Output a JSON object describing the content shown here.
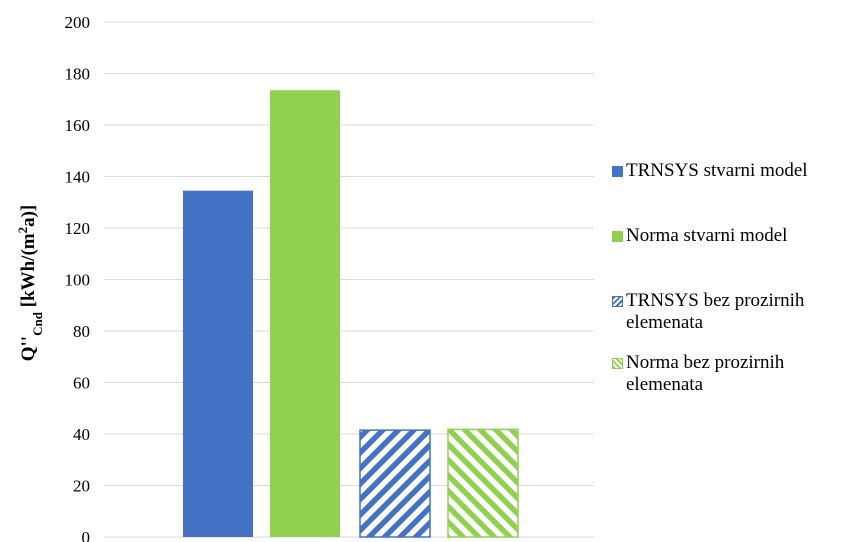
{
  "chart_data": {
    "type": "bar",
    "title": "",
    "xlabel": "",
    "ylabel": "Q''Cnd [kWh/(m²a)]",
    "ylabel_parts": {
      "main": "Q''",
      "sub": "Cnd",
      "unit": " [kWh/(m",
      "sup": "2",
      "tail": "a)]"
    },
    "ylim": [
      0,
      200
    ],
    "ytick_step": 20,
    "yticks": [
      "0",
      "20",
      "40",
      "60",
      "80",
      "100",
      "120",
      "140",
      "160",
      "180",
      "200"
    ],
    "grid": true,
    "legend_position": "right",
    "series": [
      {
        "name": "TRNSYS stvarni model",
        "values": [
          134.5
        ],
        "color": "#4472C4",
        "pattern": "solid"
      },
      {
        "name": "Norma stvarni model",
        "values": [
          173.5
        ],
        "color": "#92D050",
        "pattern": "solid"
      },
      {
        "name": "TRNSYS bez prozirnih elemenata",
        "values": [
          41.5
        ],
        "color": "#4472C4",
        "pattern": "hatch"
      },
      {
        "name": "Norma bez prozirnih elemenata",
        "values": [
          41.8
        ],
        "color": "#92D050",
        "pattern": "hatch"
      }
    ]
  }
}
